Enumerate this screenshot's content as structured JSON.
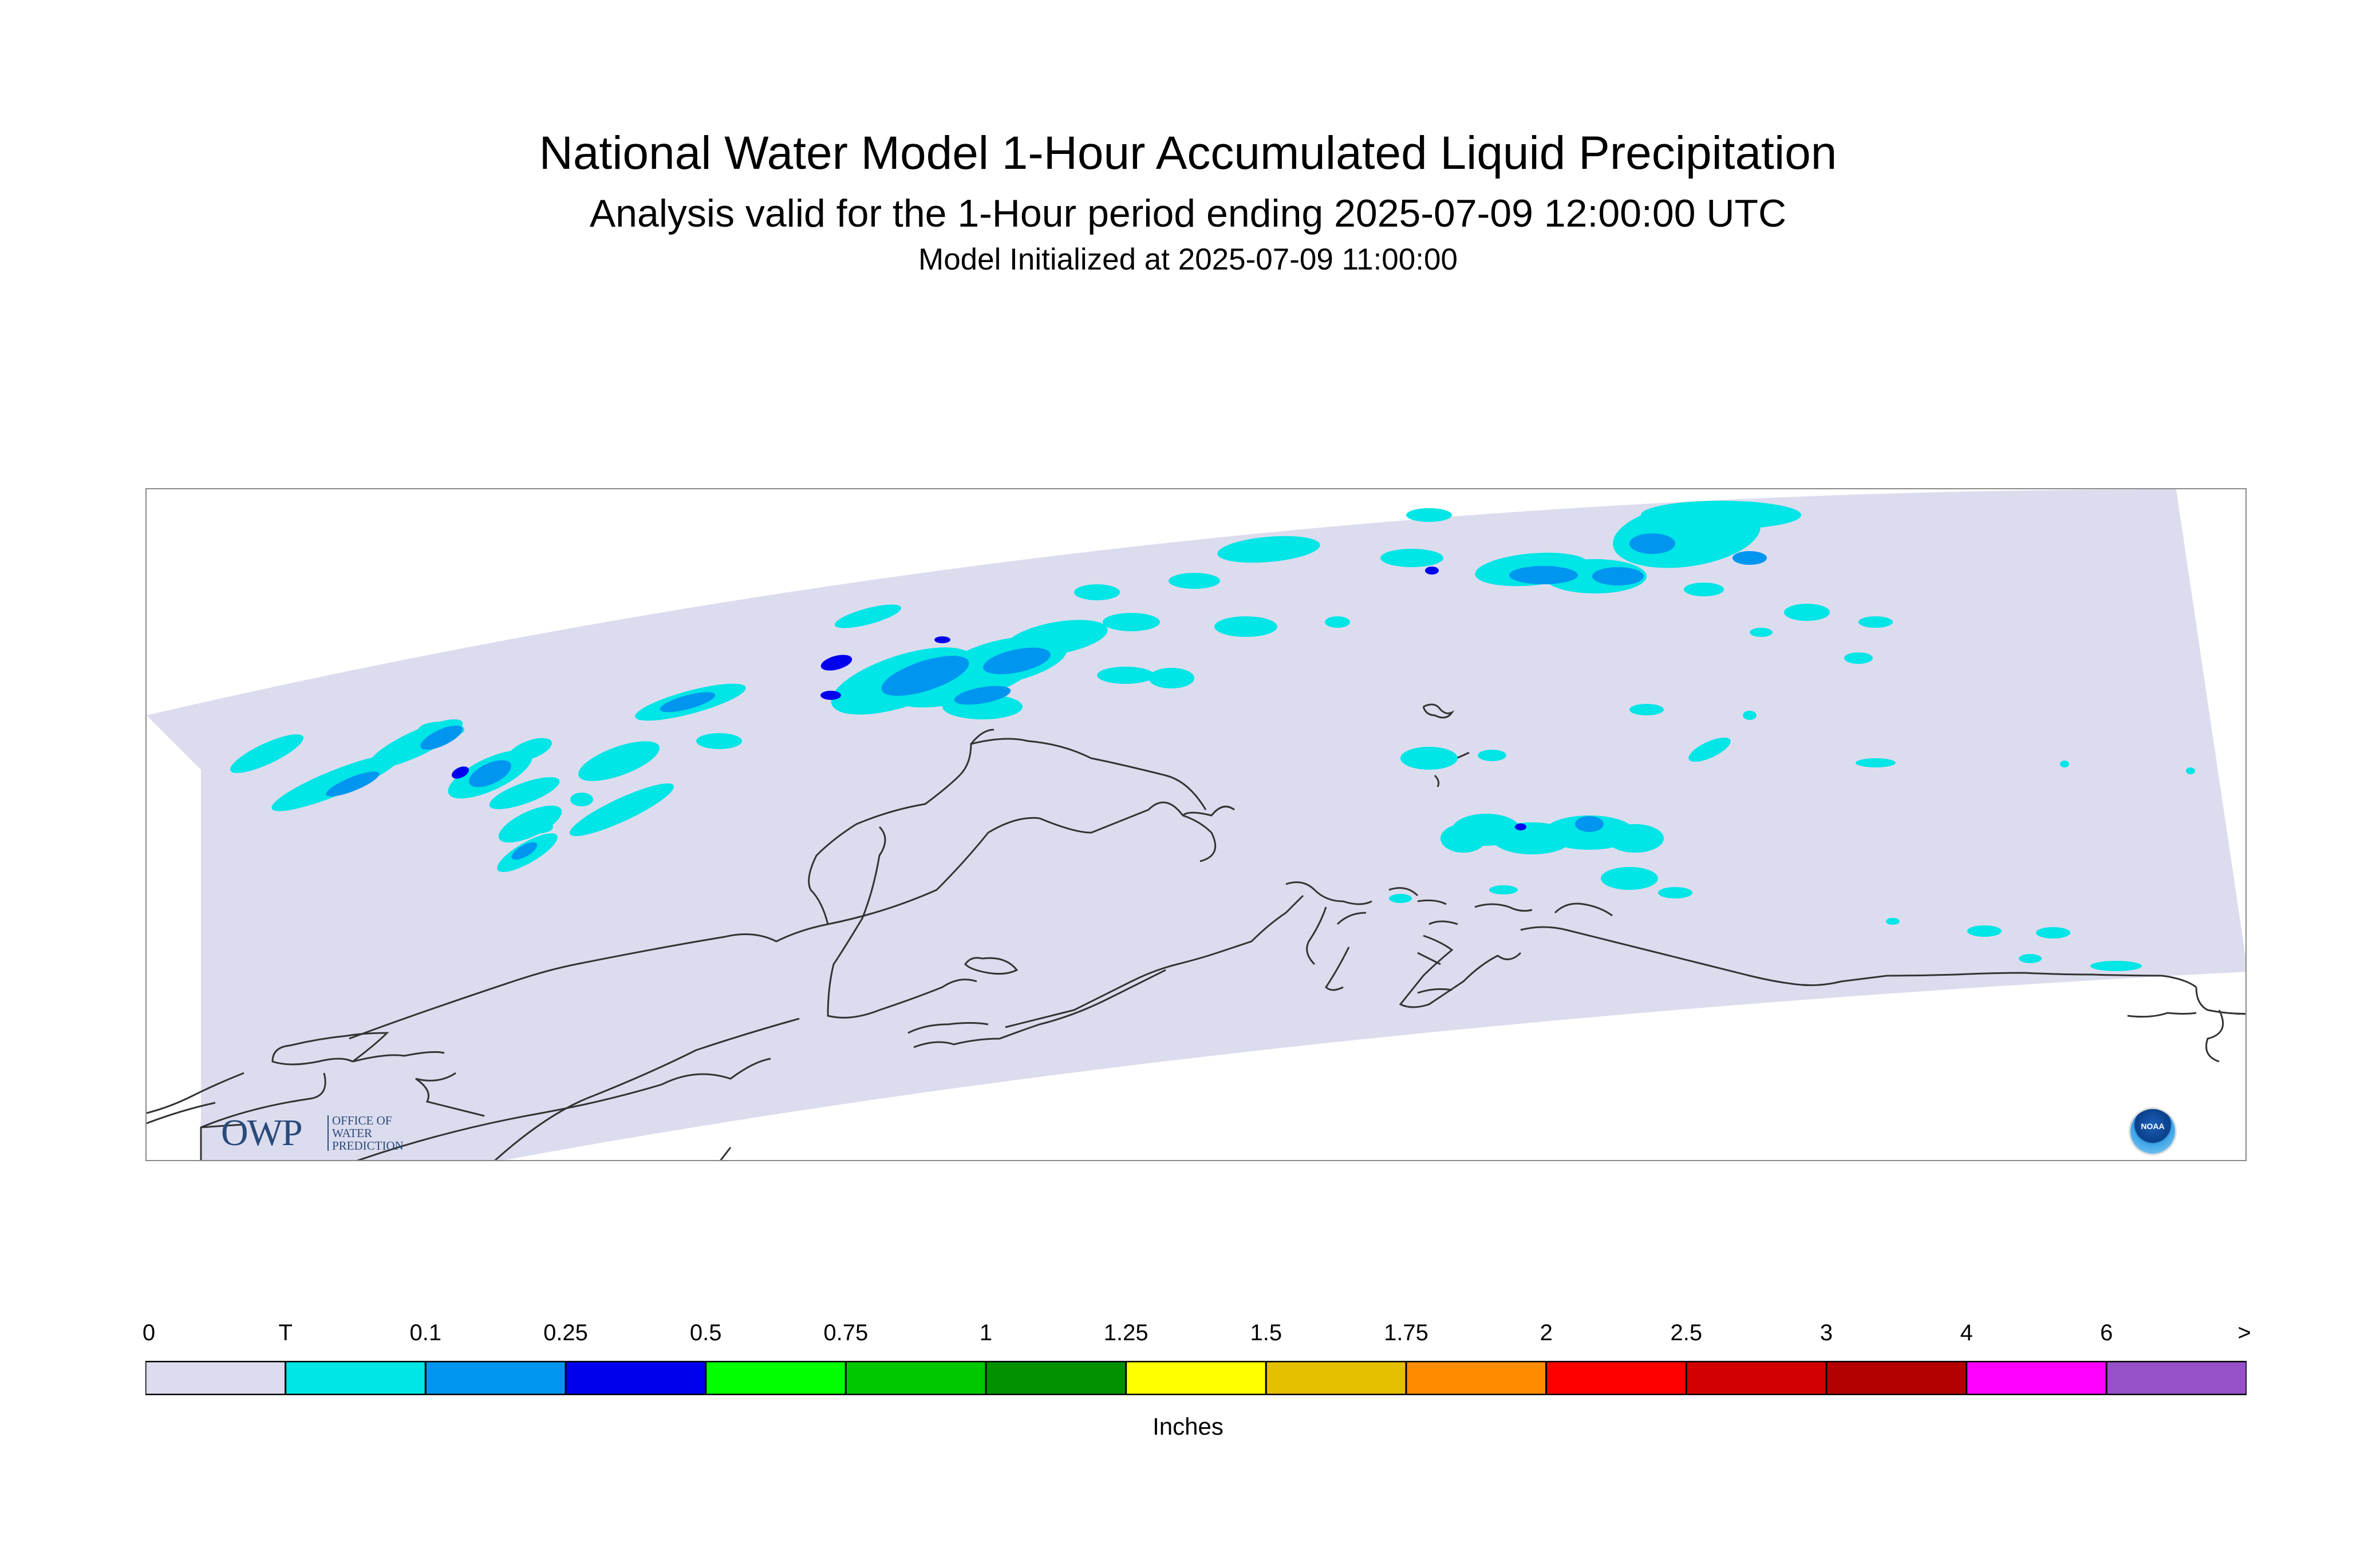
{
  "header": {
    "title": "National Water Model 1-Hour Accumulated Liquid Precipitation",
    "subtitle": "Analysis valid for the 1-Hour period ending 2025-07-09 12:00:00 UTC",
    "init": "Model Initialized at 2025-07-09 11:00:00"
  },
  "logos": {
    "owp_mark": "OWP",
    "owp_text_1": "OFFICE OF",
    "owp_text_2": "WATER",
    "owp_text_3": "PREDICTION",
    "noaa_text": "NOAA"
  },
  "map": {
    "domain_color": "#dcdcef",
    "coastline_color": "#333333",
    "region": "Alaska"
  },
  "legend": {
    "units": "Inches",
    "ticks": [
      "0",
      "T",
      "0.1",
      "0.25",
      "0.5",
      "0.75",
      "1",
      "1.25",
      "1.5",
      "1.75",
      "2",
      "2.5",
      "3",
      "4",
      "6",
      ">"
    ],
    "colors": [
      "#dcdcef",
      "#00e5e5",
      "#0096f0",
      "#0000ee",
      "#00ff00",
      "#00c800",
      "#009100",
      "#ffff00",
      "#e6be00",
      "#ff8c00",
      "#ff0000",
      "#d20000",
      "#b40000",
      "#ff00ff",
      "#9650c8"
    ]
  }
}
